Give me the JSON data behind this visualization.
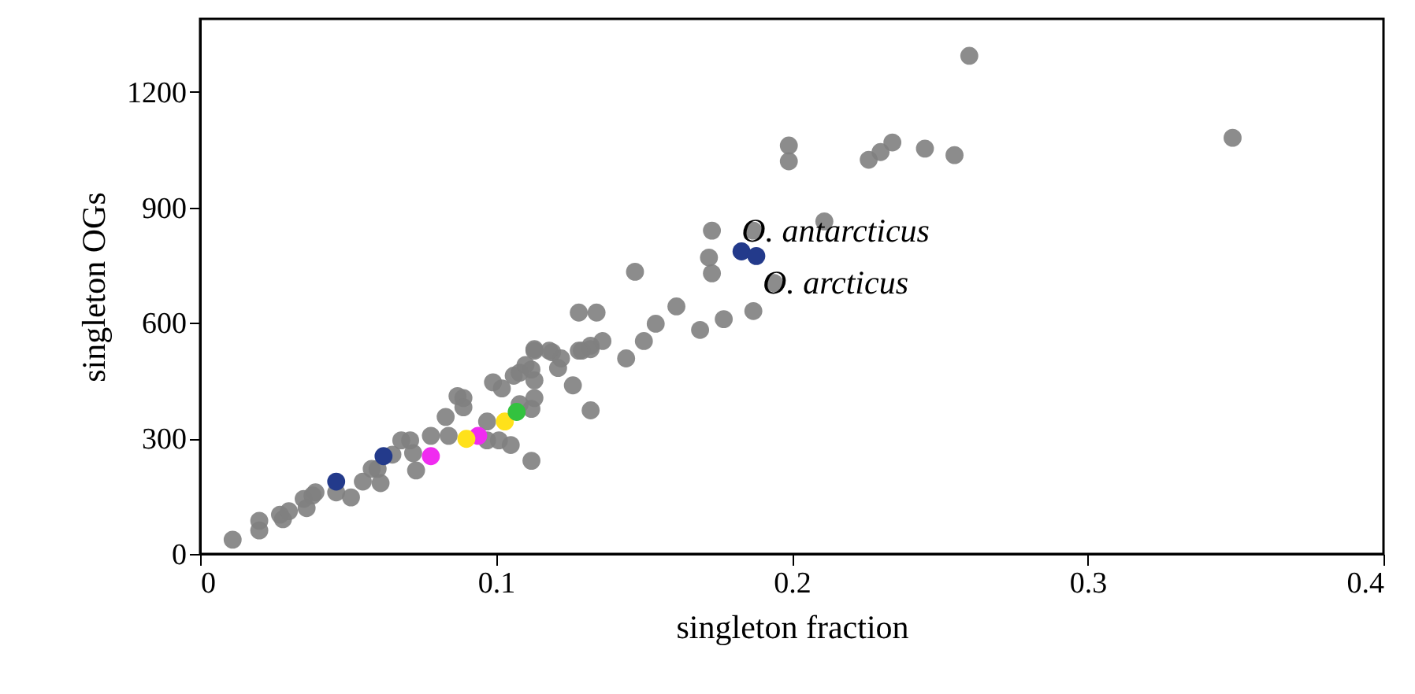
{
  "chart_data": {
    "type": "scatter",
    "xlabel": "singleton fraction",
    "ylabel": "singleton OGs",
    "xlim": [
      0,
      0.4
    ],
    "xticks": [
      0,
      0.1,
      0.2,
      0.3,
      0.4
    ],
    "ylim": [
      0,
      1390
    ],
    "yticks": [
      0,
      300,
      600,
      900,
      1200
    ],
    "grid": false,
    "series": [
      {
        "color": "#808080",
        "x": [
          0.011,
          0.02,
          0.02,
          0.027,
          0.028,
          0.03,
          0.035,
          0.036,
          0.039,
          0.038,
          0.046,
          0.051,
          0.055,
          0.061,
          0.058,
          0.06,
          0.065,
          0.068,
          0.071,
          0.073,
          0.072,
          0.078,
          0.084,
          0.083,
          0.087,
          0.089,
          0.089,
          0.097,
          0.097,
          0.101,
          0.105,
          0.112,
          0.099,
          0.102,
          0.106,
          0.108,
          0.11,
          0.112,
          0.113,
          0.113,
          0.112,
          0.108,
          0.113,
          0.119,
          0.122,
          0.121,
          0.126,
          0.132,
          0.129,
          0.132,
          0.173,
          0.172,
          0.173,
          0.147,
          0.199,
          0.199,
          0.226,
          0.23,
          0.234,
          0.245,
          0.255,
          0.26,
          0.187,
          0.211,
          0.194,
          0.187,
          0.177,
          0.169,
          0.161,
          0.154,
          0.15,
          0.128,
          0.134,
          0.144,
          0.136,
          0.132,
          0.128,
          0.118,
          0.113,
          0.349
        ],
        "values": [
          37,
          86,
          61,
          102,
          90,
          111,
          143,
          119,
          160,
          152,
          160,
          147,
          188,
          184,
          221,
          221,
          258,
          295,
          295,
          217,
          262,
          307,
          307,
          356,
          410,
          405,
          381,
          344,
          295,
          295,
          283,
          242,
          446,
          430,
          463,
          471,
          491,
          479,
          451,
          405,
          377,
          389,
          528,
          524,
          508,
          483,
          438,
          373,
          528,
          541,
          840,
          770,
          729,
          733,
          1061,
          1020,
          1024,
          1044,
          1069,
          1053,
          1036,
          1294,
          840,
          864,
          704,
          631,
          610,
          582,
          643,
          598,
          553,
          627,
          627,
          508,
          553,
          532,
          528,
          528,
          532,
          1081
        ]
      },
      {
        "color": "#233a8b",
        "x": [
          0.046,
          0.062,
          0.183,
          0.188
        ],
        "values": [
          188,
          254,
          786,
          774
        ]
      },
      {
        "color": "#f02cf0",
        "x": [
          0.078,
          0.094
        ],
        "values": [
          254,
          307
        ]
      },
      {
        "color": "#ffe11a",
        "x": [
          0.09,
          0.103
        ],
        "values": [
          299,
          344
        ]
      },
      {
        "color": "#33c23f",
        "x": [
          0.107
        ],
        "values": [
          369
        ]
      }
    ],
    "annotations": [
      {
        "text": "O. antarcticus",
        "x": 0.183,
        "y": 786
      },
      {
        "text": "O. arcticus",
        "x": 0.188,
        "y": 774
      }
    ]
  }
}
